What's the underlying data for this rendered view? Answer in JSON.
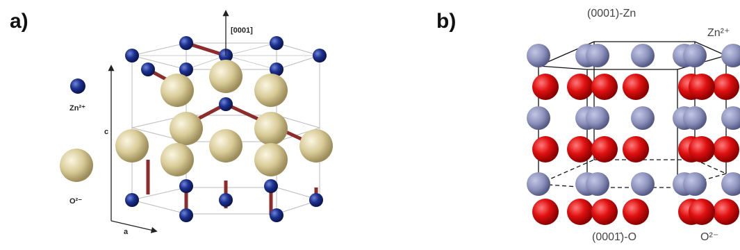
{
  "panel_a": {
    "label": "a)",
    "axis_direction": "[0001]",
    "axis_c": "c",
    "axis_a": "a",
    "legend_zn": "Zn²⁺",
    "legend_o": "O²⁻"
  },
  "panel_b": {
    "label": "b)",
    "top_face": "(0001)-Zn",
    "bottom_face": "(0001̄)-O",
    "legend_zn": "Zn²⁺",
    "legend_o": "O²⁻"
  }
}
